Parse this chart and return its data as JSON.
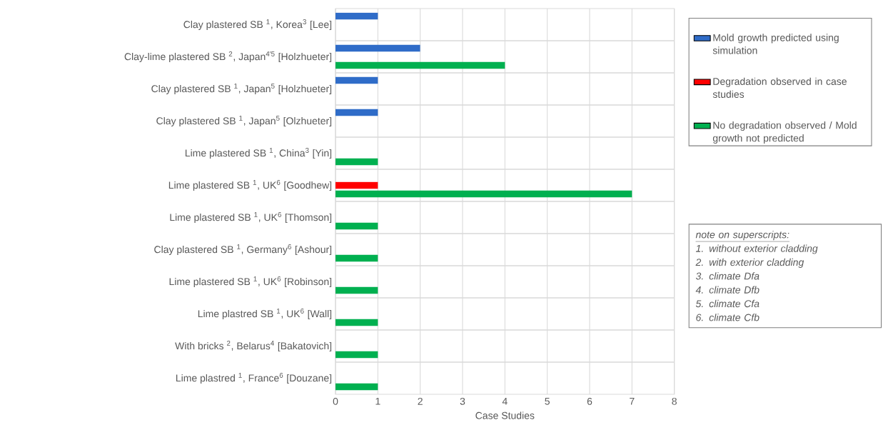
{
  "chart_data": {
    "type": "bar",
    "orientation": "horizontal",
    "xlabel": "Case Studies",
    "categories": [
      "Clay plastered SB $^{1}$, Korea$^{3}$ [Lee]",
      "Clay-lime plastered SB $^{2}$, Japan$^{4′5}$ [Holzhueter]",
      "Clay plastered SB $^{1}$, Japan$^{5}$ [Holzhueter]",
      "Clay plastered SB $^{1}$, Japan$^{5}$ [Olzhueter]",
      "Lime plastered SB $^{1}$, China$^{3}$ [Yin]",
      "Lime plastered SB $^{1}$, UK$^{6}$ [Goodhew]",
      "Lime plastered SB $^{1}$, UK$^{6}$ [Thomson]",
      "Clay plastered SB $^{1}$, Germany$^{6}$ [Ashour]",
      "Lime plastered SB $^{1}$, UK$^{6}$ [Robinson]",
      "Lime plastred SB $^{1}$, UK$^{6}$ [Wall]",
      "With bricks $^{2}$, Belarus$^{4}$ [Bakatovich]",
      "Lime plastred $^{1}$, France$^{6}$ [Douzane]"
    ],
    "series": [
      {
        "name": "Mold growth predicted using simulation",
        "color": "#2f6cc8",
        "values": [
          1,
          2,
          1,
          1,
          null,
          null,
          null,
          null,
          null,
          null,
          null,
          null
        ]
      },
      {
        "name": "Degradation observed in case studies",
        "color": "#ff0000",
        "values": [
          null,
          null,
          null,
          null,
          null,
          1,
          null,
          null,
          null,
          null,
          null,
          null
        ]
      },
      {
        "name": "No degradation observed / Mold growth not predicted",
        "color": "#00b050",
        "values": [
          null,
          4,
          null,
          null,
          1,
          7,
          1,
          1,
          1,
          1,
          1,
          1
        ]
      }
    ],
    "xlim": [
      0,
      8
    ],
    "xticks": [
      0,
      1,
      2,
      3,
      4,
      5,
      6,
      7,
      8
    ],
    "grid": true,
    "legend": "right",
    "annotations": [
      "note on superscripts:",
      "1. without exterior cladding",
      "2. with exterior cladding",
      "3. climate Dfa",
      "4. climate Dfb",
      "5. climate Cfa",
      "6. climate Cfb"
    ]
  }
}
